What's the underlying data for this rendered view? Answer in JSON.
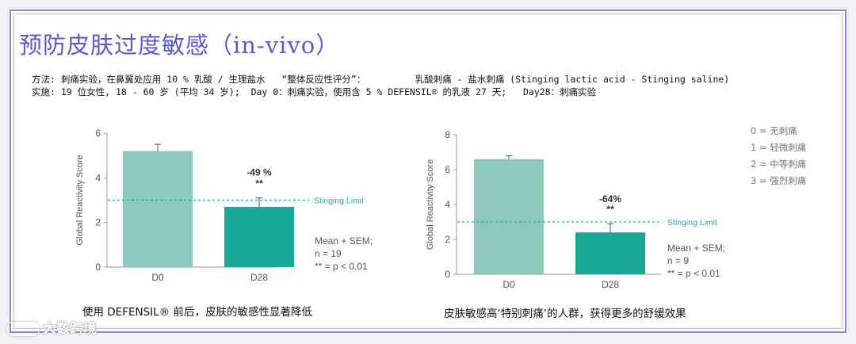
{
  "title": "预防皮肤过度敏感（in-vivo）",
  "method_line1": "方法: 刺痛实验，在鼻翼处应用 10 % 乳酸 / 生理盐水   “整体反应性评分”：         乳酸刺痛 - 盐水刺痛 (Stinging lactic acid - Stinging saline)",
  "method_line2": "实施: 19 位女性, 18 - 60 岁 (平均 34 岁);  Day 0：刺痛实验，使用含 5 % DEFENSIL® 的乳液 27 天;   Day28：刺痛实验",
  "legend": [
    "0 = 无刺痛",
    "1 = 轻微刺痛",
    "2 = 中等刺痛",
    "3 = 强烈刺痛"
  ],
  "watermark": "大数跨境",
  "colors": {
    "bar_d0": "#8ec9bd",
    "bar_d28": "#1aa896",
    "limit": "#2aa7a7",
    "axis": "#999999"
  },
  "chart_data": [
    {
      "type": "bar",
      "categories": [
        "D0",
        "D28"
      ],
      "values": [
        5.2,
        2.7
      ],
      "errors": [
        0.3,
        0.4
      ],
      "ylabel": "Global Reactivity Score",
      "ylim": [
        0,
        6
      ],
      "yticks": [
        0,
        2,
        4,
        6
      ],
      "limit_value": 3,
      "limit_label": "Stinging Limit",
      "change_label": "-49 %",
      "sig_label": "**",
      "stats": [
        "Mean + SEM;",
        "n = 19",
        "** = p < 0.01"
      ],
      "caption": "使用 DEFENSIL® 前后，皮肤的敏感性显著降低"
    },
    {
      "type": "bar",
      "categories": [
        "D0",
        "D28"
      ],
      "values": [
        6.6,
        2.4
      ],
      "errors": [
        0.2,
        0.5
      ],
      "ylabel": "Global Reactivity Score",
      "ylim": [
        0,
        8
      ],
      "yticks": [
        0,
        2,
        4,
        6,
        8
      ],
      "limit_value": 3,
      "limit_label": "Stinging Limit",
      "change_label": "-64%",
      "sig_label": "**",
      "stats": [
        "Mean + SEM;",
        "n = 9",
        "** = p < 0.01"
      ],
      "caption": "皮肤敏感高‘特别刺痛’的人群，获得更多的舒缓效果"
    }
  ]
}
